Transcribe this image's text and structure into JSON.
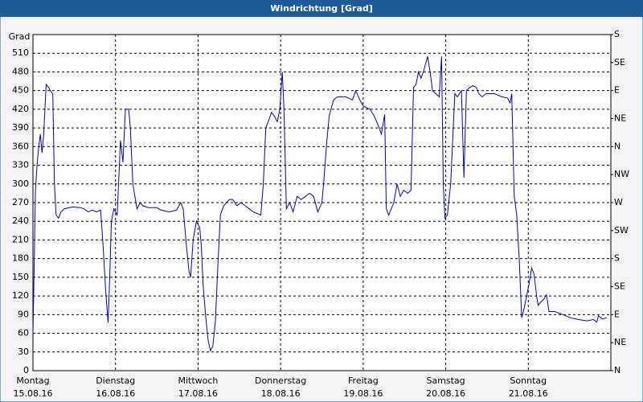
{
  "chart_data": {
    "type": "line",
    "title": "Windrichtung [Grad]",
    "y_label": "Grad",
    "xlim": [
      0,
      7
    ],
    "xticks": [
      {
        "value": 0,
        "label": "Montag",
        "sublabel": "15.08.16"
      },
      {
        "value": 1,
        "label": "Dienstag",
        "sublabel": "16.08.16"
      },
      {
        "value": 2,
        "label": "Mittwoch",
        "sublabel": "17.08.16"
      },
      {
        "value": 3,
        "label": "Donnerstag",
        "sublabel": "18.08.16"
      },
      {
        "value": 4,
        "label": "Freitag",
        "sublabel": "19.08.16"
      },
      {
        "value": 5,
        "label": "Samstag",
        "sublabel": "20.08.16"
      },
      {
        "value": 6,
        "label": "Sonntag",
        "sublabel": "21.08.16"
      }
    ],
    "ylim": [
      0,
      540
    ],
    "yticks": [
      0,
      30,
      60,
      90,
      120,
      150,
      180,
      210,
      240,
      270,
      300,
      330,
      360,
      390,
      420,
      450,
      480,
      510
    ],
    "y2lim": [
      0,
      540
    ],
    "y2ticks": [
      {
        "value": 0,
        "label": "N"
      },
      {
        "value": 45,
        "label": "NE"
      },
      {
        "value": 90,
        "label": "E"
      },
      {
        "value": 135,
        "label": "SE"
      },
      {
        "value": 180,
        "label": "S"
      },
      {
        "value": 225,
        "label": "SW"
      },
      {
        "value": 270,
        "label": "W"
      },
      {
        "value": 315,
        "label": "NW"
      },
      {
        "value": 360,
        "label": "N"
      },
      {
        "value": 405,
        "label": "NE"
      },
      {
        "value": 450,
        "label": "E"
      },
      {
        "value": 495,
        "label": "SE"
      },
      {
        "value": 540,
        "label": "S"
      }
    ],
    "grid": true,
    "x": [
      0.0,
      0.01,
      0.03,
      0.05,
      0.07,
      0.09,
      0.11,
      0.13,
      0.16,
      0.19,
      0.21,
      0.24,
      0.26,
      0.28,
      0.31,
      0.34,
      0.38,
      0.48,
      0.57,
      0.62,
      0.67,
      0.72,
      0.77,
      0.82,
      0.85,
      0.88,
      0.91,
      0.93,
      0.95,
      0.98,
      1.02,
      1.06,
      1.09,
      1.12,
      1.16,
      1.18,
      1.21,
      1.26,
      1.3,
      1.33,
      1.4,
      1.5,
      1.55,
      1.65,
      1.74,
      1.79,
      1.82,
      1.86,
      1.89,
      1.91,
      1.94,
      1.98,
      2.02,
      2.04,
      2.06,
      2.09,
      2.12,
      2.15,
      2.18,
      2.21,
      2.24,
      2.27,
      2.31,
      2.38,
      2.42,
      2.47,
      2.52,
      2.57,
      2.62,
      2.67,
      2.76,
      2.79,
      2.82,
      2.85,
      2.89,
      2.92,
      2.96,
      2.99,
      3.02,
      3.04,
      3.07,
      3.11,
      3.15,
      3.2,
      3.25,
      3.3,
      3.35,
      3.4,
      3.45,
      3.5,
      3.52,
      3.56,
      3.59,
      3.64,
      3.69,
      3.79,
      3.87,
      3.91,
      3.96,
      4.0,
      4.08,
      4.13,
      4.18,
      4.22,
      4.26,
      4.28,
      4.31,
      4.37,
      4.41,
      4.45,
      4.49,
      4.54,
      4.58,
      4.61,
      4.64,
      4.67,
      4.7,
      4.73,
      4.78,
      4.81,
      4.84,
      4.88,
      4.92,
      4.95,
      4.97,
      4.99,
      5.02,
      5.06,
      5.11,
      5.14,
      5.19,
      5.22,
      5.25,
      5.29,
      5.33,
      5.37,
      5.4,
      5.44,
      5.49,
      5.59,
      5.68,
      5.75,
      5.78,
      5.8,
      5.83,
      5.86,
      5.89,
      5.92,
      5.95,
      5.98,
      6.01,
      6.04,
      6.07,
      6.1,
      6.12,
      6.15,
      6.19,
      6.22,
      6.25,
      6.32,
      6.42,
      6.51,
      6.61,
      6.71,
      6.79,
      6.83,
      6.85,
      6.9,
      6.95
    ],
    "series": [
      {
        "name": "Windrichtung",
        "color": "#0000c0",
        "values": [
          60,
          130,
          290,
          330,
          360,
          380,
          350,
          380,
          460,
          455,
          450,
          445,
          300,
          250,
          245,
          255,
          260,
          263,
          262,
          260,
          255,
          258,
          255,
          258,
          200,
          130,
          77,
          150,
          240,
          260,
          250,
          370,
          335,
          420,
          420,
          390,
          300,
          260,
          270,
          265,
          262,
          262,
          258,
          255,
          258,
          270,
          260,
          200,
          160,
          150,
          210,
          240,
          230,
          200,
          140,
          90,
          50,
          32,
          40,
          80,
          170,
          250,
          265,
          275,
          275,
          265,
          270,
          265,
          260,
          255,
          250,
          300,
          390,
          400,
          415,
          410,
          400,
          420,
          480,
          420,
          260,
          270,
          255,
          280,
          275,
          280,
          285,
          280,
          255,
          270,
          300,
          370,
          410,
          435,
          440,
          440,
          435,
          450,
          435,
          425,
          420,
          410,
          395,
          380,
          412,
          260,
          250,
          270,
          300,
          280,
          290,
          285,
          290,
          455,
          460,
          480,
          470,
          480,
          505,
          480,
          450,
          445,
          440,
          505,
          300,
          245,
          250,
          300,
          445,
          440,
          450,
          310,
          450,
          455,
          458,
          455,
          445,
          440,
          445,
          445,
          440,
          438,
          430,
          445,
          280,
          250,
          180,
          85,
          100,
          120,
          140,
          165,
          155,
          120,
          105,
          110,
          115,
          122,
          95,
          95,
          90,
          85,
          82,
          80,
          82,
          78,
          88,
          83,
          85
        ]
      }
    ]
  }
}
